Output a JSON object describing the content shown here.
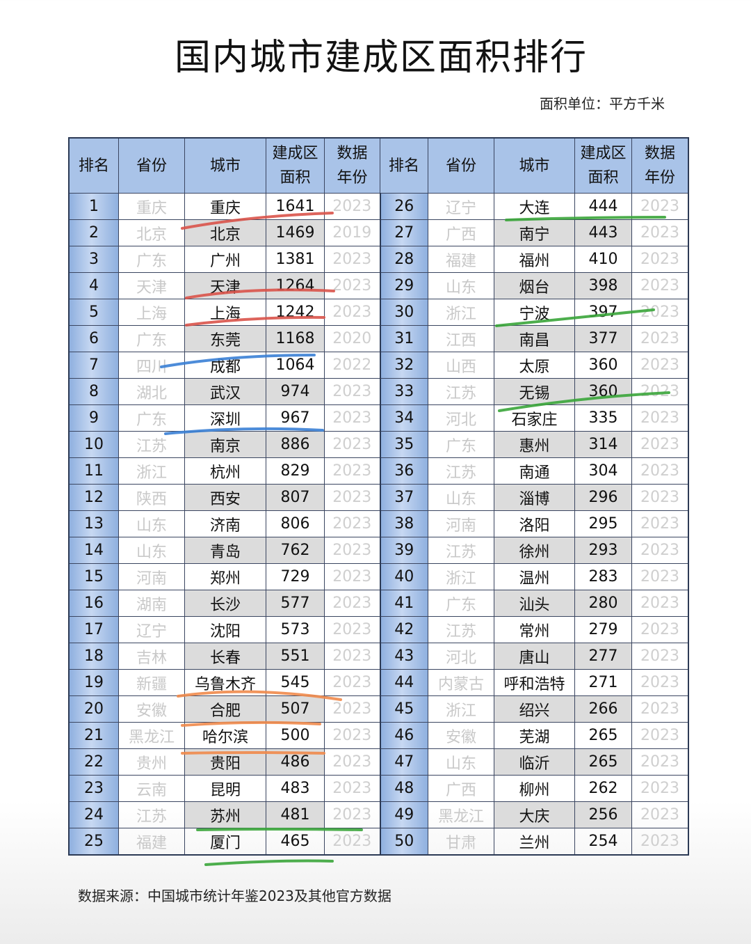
{
  "title": "国内城市建成区面积排行",
  "unit": "面积单位：平方千米",
  "source": "数据来源：中国城市统计年鉴2023及其他官方数据",
  "headers": [
    "排名",
    "省份",
    "城市",
    "建成区\n面积",
    "数据\n年份"
  ],
  "rows": [
    [
      "1",
      "重庆",
      "重庆",
      "1641",
      "2023"
    ],
    [
      "2",
      "北京",
      "北京",
      "1469",
      "2019"
    ],
    [
      "3",
      "广东",
      "广州",
      "1381",
      "2023"
    ],
    [
      "4",
      "天津",
      "天津",
      "1264",
      "2023"
    ],
    [
      "5",
      "上海",
      "上海",
      "1242",
      "2023"
    ],
    [
      "6",
      "广东",
      "东莞",
      "1168",
      "2020"
    ],
    [
      "7",
      "四川",
      "成都",
      "1064",
      "2022"
    ],
    [
      "8",
      "湖北",
      "武汉",
      "974",
      "2023"
    ],
    [
      "9",
      "广东",
      "深圳",
      "967",
      "2023"
    ],
    [
      "10",
      "江苏",
      "南京",
      "886",
      "2023"
    ],
    [
      "11",
      "浙江",
      "杭州",
      "829",
      "2023"
    ],
    [
      "12",
      "陕西",
      "西安",
      "807",
      "2023"
    ],
    [
      "13",
      "山东",
      "济南",
      "806",
      "2023"
    ],
    [
      "14",
      "山东",
      "青岛",
      "762",
      "2023"
    ],
    [
      "15",
      "河南",
      "郑州",
      "729",
      "2023"
    ],
    [
      "16",
      "湖南",
      "长沙",
      "577",
      "2023"
    ],
    [
      "17",
      "辽宁",
      "沈阳",
      "573",
      "2023"
    ],
    [
      "18",
      "吉林",
      "长春",
      "551",
      "2023"
    ],
    [
      "19",
      "新疆",
      "乌鲁木齐",
      "545",
      "2023"
    ],
    [
      "20",
      "安徽",
      "合肥",
      "507",
      "2023"
    ],
    [
      "21",
      "黑龙江",
      "哈尔滨",
      "500",
      "2023"
    ],
    [
      "22",
      "贵州",
      "贵阳",
      "486",
      "2023"
    ],
    [
      "23",
      "云南",
      "昆明",
      "483",
      "2023"
    ],
    [
      "24",
      "江苏",
      "苏州",
      "481",
      "2023"
    ],
    [
      "25",
      "福建",
      "厦门",
      "465",
      "2023"
    ],
    [
      "26",
      "辽宁",
      "大连",
      "444",
      "2023"
    ],
    [
      "27",
      "广西",
      "南宁",
      "443",
      "2023"
    ],
    [
      "28",
      "福建",
      "福州",
      "410",
      "2023"
    ],
    [
      "29",
      "山东",
      "烟台",
      "398",
      "2023"
    ],
    [
      "30",
      "浙江",
      "宁波",
      "397",
      "2023"
    ],
    [
      "31",
      "江西",
      "南昌",
      "377",
      "2023"
    ],
    [
      "32",
      "山西",
      "太原",
      "360",
      "2023"
    ],
    [
      "33",
      "江苏",
      "无锡",
      "360",
      "2023"
    ],
    [
      "34",
      "河北",
      "石家庄",
      "335",
      "2023"
    ],
    [
      "35",
      "广东",
      "惠州",
      "314",
      "2023"
    ],
    [
      "36",
      "江苏",
      "南通",
      "304",
      "2023"
    ],
    [
      "37",
      "山东",
      "淄博",
      "296",
      "2023"
    ],
    [
      "38",
      "河南",
      "洛阳",
      "295",
      "2023"
    ],
    [
      "39",
      "江苏",
      "徐州",
      "293",
      "2023"
    ],
    [
      "40",
      "浙江",
      "温州",
      "283",
      "2023"
    ],
    [
      "41",
      "广东",
      "汕头",
      "280",
      "2023"
    ],
    [
      "42",
      "江苏",
      "常州",
      "279",
      "2023"
    ],
    [
      "43",
      "河北",
      "唐山",
      "277",
      "2023"
    ],
    [
      "44",
      "内蒙古",
      "呼和浩特",
      "271",
      "2023"
    ],
    [
      "45",
      "浙江",
      "绍兴",
      "266",
      "2023"
    ],
    [
      "46",
      "安徽",
      "芜湖",
      "265",
      "2023"
    ],
    [
      "47",
      "山东",
      "临沂",
      "265",
      "2023"
    ],
    [
      "48",
      "广西",
      "柳州",
      "262",
      "2023"
    ],
    [
      "49",
      "黑龙江",
      "大庆",
      "256",
      "2023"
    ],
    [
      "50",
      "甘肃",
      "兰州",
      "254",
      "2023"
    ]
  ],
  "colors": {
    "header": "#a9c3e8",
    "shade": "#dcdcdc",
    "red": "#d9534a",
    "blue": "#3a7fd5",
    "orange": "#f08a4b",
    "green": "#3aa53a"
  }
}
